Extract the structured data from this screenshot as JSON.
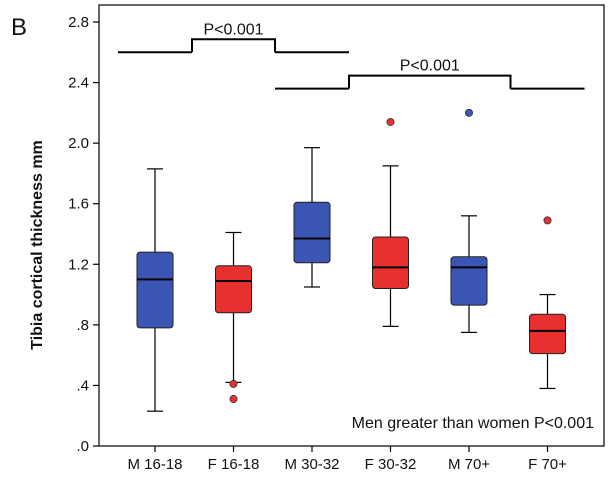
{
  "panel_label": "B",
  "chart_data": {
    "type": "box",
    "title": "",
    "xlabel": "",
    "ylabel": "Tibia cortical thickness mm",
    "ylim": [
      0.0,
      2.8
    ],
    "yticks": [
      0.0,
      0.4,
      0.8,
      1.2,
      1.6,
      2.0,
      2.4,
      2.8
    ],
    "ytick_labels": [
      ".0",
      ".4",
      ".8",
      "1.2",
      "1.6",
      "2.0",
      "2.4",
      "2.8"
    ],
    "categories": [
      "M 16-18",
      "F 16-18",
      "M 30-32",
      "F 30-32",
      "M 70+",
      "F 70+"
    ],
    "colors": {
      "male": "#3b55b4",
      "female": "#e8312f",
      "axis": "#000000"
    },
    "boxes": [
      {
        "category": "M 16-18",
        "sex": "male",
        "min": 0.23,
        "q1": 0.78,
        "median": 1.1,
        "q3": 1.28,
        "max": 1.83,
        "outliers": []
      },
      {
        "category": "F 16-18",
        "sex": "female",
        "min": 0.42,
        "q1": 0.88,
        "median": 1.09,
        "q3": 1.19,
        "max": 1.41,
        "outliers": [
          0.41,
          0.31
        ]
      },
      {
        "category": "M 30-32",
        "sex": "male",
        "min": 1.05,
        "q1": 1.21,
        "median": 1.37,
        "q3": 1.61,
        "max": 1.97,
        "outliers": []
      },
      {
        "category": "F 30-32",
        "sex": "female",
        "min": 0.79,
        "q1": 1.04,
        "median": 1.18,
        "q3": 1.38,
        "max": 1.85,
        "outliers": [
          2.14
        ]
      },
      {
        "category": "M 70+",
        "sex": "male",
        "min": 0.75,
        "q1": 0.93,
        "median": 1.18,
        "q3": 1.25,
        "max": 1.52,
        "outliers": [
          2.2
        ]
      },
      {
        "category": "F 70+",
        "sex": "female",
        "min": 0.38,
        "q1": 0.61,
        "median": 0.76,
        "q3": 0.87,
        "max": 1.0,
        "outliers": [
          1.49
        ]
      }
    ],
    "brackets": [
      {
        "label": "P<0.001",
        "from": 0,
        "to": 2,
        "level": 2.6
      },
      {
        "label": "P<0.001",
        "from": 2,
        "to": 5,
        "level": 2.36
      }
    ],
    "annotation": "Men greater than women P<0.001"
  }
}
